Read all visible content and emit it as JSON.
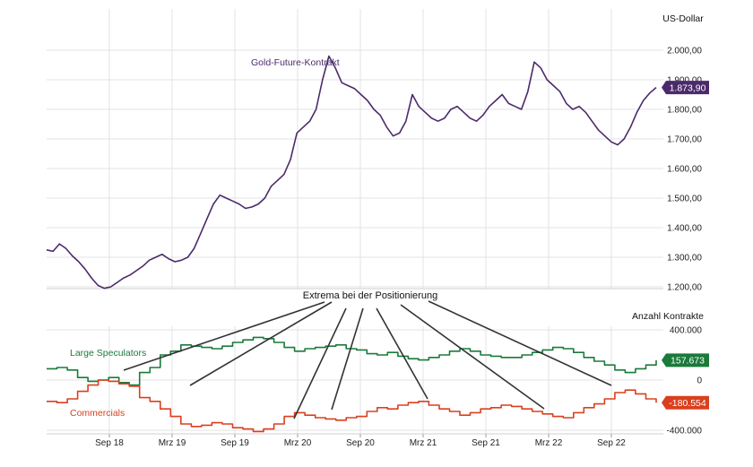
{
  "chart_data": [
    {
      "type": "line",
      "unit_label": "US-Dollar",
      "series": [
        {
          "name": "Gold-Future-Kontrakt",
          "color": "#4b2a6b",
          "last_value_label": "1.873,90",
          "values": [
            1325,
            1320,
            1345,
            1330,
            1305,
            1285,
            1260,
            1230,
            1205,
            1195,
            1200,
            1215,
            1230,
            1240,
            1255,
            1270,
            1290,
            1300,
            1310,
            1295,
            1285,
            1290,
            1300,
            1330,
            1380,
            1430,
            1480,
            1510,
            1500,
            1490,
            1480,
            1465,
            1470,
            1480,
            1500,
            1540,
            1560,
            1580,
            1630,
            1720,
            1740,
            1760,
            1800,
            1900,
            1980,
            1940,
            1890,
            1880,
            1870,
            1850,
            1830,
            1800,
            1780,
            1740,
            1710,
            1720,
            1760,
            1850,
            1810,
            1790,
            1770,
            1760,
            1770,
            1800,
            1810,
            1790,
            1770,
            1760,
            1780,
            1810,
            1830,
            1850,
            1820,
            1810,
            1800,
            1860,
            1960,
            1940,
            1900,
            1880,
            1860,
            1820,
            1800,
            1810,
            1790,
            1760,
            1730,
            1710,
            1690,
            1680,
            1700,
            1740,
            1790,
            1830,
            1855,
            1873.9
          ]
        }
      ],
      "y_ticks": [
        "2.000,00",
        "1.900,00",
        "1.800,00",
        "1.700,00",
        "1.600,00",
        "1.500,00",
        "1.400,00",
        "1.300,00",
        "1.200,00"
      ],
      "ylim": [
        1200,
        2000
      ],
      "label_color": "#4b2a6b",
      "grid": true
    },
    {
      "type": "line",
      "unit_label": "Anzahl Kontrakte",
      "annotation": "Extrema bei der Positionierung",
      "series": [
        {
          "name": "Large Speculators",
          "color": "#1a7a3a",
          "last_value_label": "157.673",
          "values": [
            90000,
            100000,
            80000,
            20000,
            -10000,
            0,
            20000,
            -20000,
            -40000,
            60000,
            100000,
            200000,
            230000,
            280000,
            270000,
            260000,
            250000,
            270000,
            300000,
            320000,
            340000,
            330000,
            300000,
            260000,
            230000,
            250000,
            260000,
            270000,
            280000,
            250000,
            240000,
            210000,
            200000,
            220000,
            190000,
            170000,
            160000,
            180000,
            200000,
            230000,
            250000,
            230000,
            200000,
            190000,
            180000,
            180000,
            200000,
            220000,
            240000,
            260000,
            250000,
            220000,
            180000,
            150000,
            120000,
            80000,
            60000,
            90000,
            120000,
            157673
          ]
        },
        {
          "name": "Commercials",
          "color": "#d9401e",
          "last_value_label": "-180.554",
          "values": [
            -170000,
            -180000,
            -150000,
            -90000,
            -40000,
            0,
            -10000,
            -30000,
            -50000,
            -140000,
            -170000,
            -230000,
            -290000,
            -350000,
            -370000,
            -360000,
            -340000,
            -350000,
            -380000,
            -390000,
            -410000,
            -390000,
            -350000,
            -290000,
            -260000,
            -280000,
            -300000,
            -310000,
            -320000,
            -300000,
            -290000,
            -250000,
            -220000,
            -230000,
            -200000,
            -180000,
            -170000,
            -200000,
            -230000,
            -250000,
            -280000,
            -260000,
            -230000,
            -220000,
            -200000,
            -210000,
            -230000,
            -250000,
            -270000,
            -290000,
            -300000,
            -260000,
            -220000,
            -190000,
            -150000,
            -100000,
            -80000,
            -110000,
            -150000,
            -180554
          ]
        }
      ],
      "y_ticks": [
        "400.000",
        "0",
        "-400.000"
      ],
      "ylim": [
        -400000,
        400000
      ],
      "grid": true
    }
  ],
  "x_axis": {
    "ticks": [
      "Sep 18",
      "Mrz 19",
      "Sep 19",
      "Mrz 20",
      "Sep 20",
      "Mrz 21",
      "Sep 21",
      "Mrz 22",
      "Sep 22"
    ]
  }
}
